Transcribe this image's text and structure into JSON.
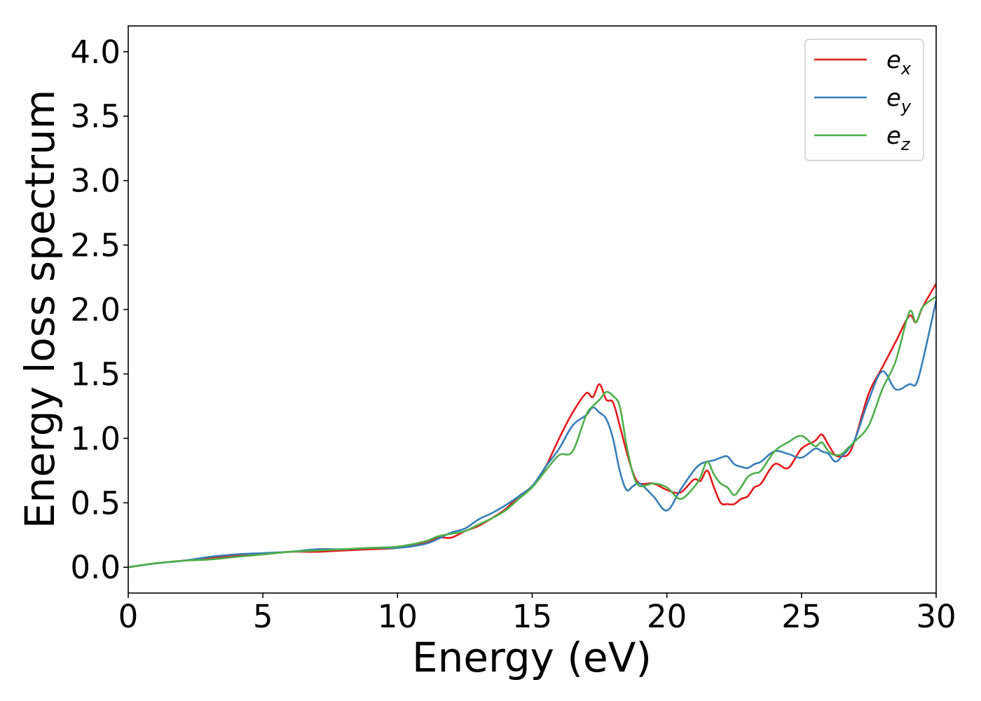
{
  "chart_data": {
    "type": "line",
    "title": "",
    "xlabel": "Energy (eV)",
    "ylabel": "Energy loss spectrum",
    "xlim": [
      0,
      30
    ],
    "ylim": [
      -0.2,
      4.2
    ],
    "xticks": [
      0,
      5,
      10,
      15,
      20,
      25,
      30
    ],
    "xtick_labels": [
      "0",
      "5",
      "10",
      "15",
      "20",
      "25",
      "30"
    ],
    "yticks": [
      0.0,
      0.5,
      1.0,
      1.5,
      2.0,
      2.5,
      3.0,
      3.5,
      4.0
    ],
    "ytick_labels": [
      "0.0",
      "0.5",
      "1.0",
      "1.5",
      "2.0",
      "2.5",
      "3.0",
      "3.5",
      "4.0"
    ],
    "grid": false,
    "legend_position": "top-right",
    "series": [
      {
        "name": "e_x",
        "label_base": "e",
        "label_sub": "x",
        "color": "#e41a1c",
        "x": [
          0,
          1,
          2,
          3,
          4,
          5,
          6,
          7,
          8,
          9,
          10,
          11,
          11.5,
          12,
          12.5,
          13,
          13.5,
          14,
          14.5,
          15,
          15.5,
          16,
          16.5,
          17,
          17.25,
          17.5,
          17.75,
          18,
          18.25,
          18.5,
          18.75,
          19,
          19.5,
          20,
          20.5,
          21,
          21.25,
          21.5,
          21.75,
          22,
          22.25,
          22.5,
          22.75,
          23,
          23.25,
          23.5,
          24,
          24.5,
          25,
          25.5,
          25.75,
          26,
          26.25,
          26.5,
          26.75,
          27,
          27.5,
          28,
          28.5,
          29,
          29.25,
          29.5,
          30
        ],
        "y": [
          0.0,
          0.03,
          0.05,
          0.07,
          0.09,
          0.1,
          0.12,
          0.12,
          0.13,
          0.14,
          0.15,
          0.19,
          0.23,
          0.23,
          0.28,
          0.32,
          0.38,
          0.45,
          0.55,
          0.63,
          0.78,
          1.0,
          1.2,
          1.35,
          1.32,
          1.42,
          1.3,
          1.28,
          1.1,
          0.9,
          0.73,
          0.65,
          0.65,
          0.6,
          0.58,
          0.68,
          0.67,
          0.75,
          0.62,
          0.5,
          0.49,
          0.49,
          0.53,
          0.55,
          0.62,
          0.65,
          0.8,
          0.77,
          0.92,
          0.98,
          1.03,
          0.95,
          0.87,
          0.86,
          0.88,
          1.0,
          1.35,
          1.55,
          1.75,
          1.95,
          1.9,
          2.02,
          2.2
        ]
      },
      {
        "name": "e_y",
        "label_base": "e",
        "label_sub": "y",
        "color": "#377eb8",
        "x": [
          0,
          1,
          2,
          3,
          4,
          5,
          6,
          7,
          8,
          9,
          10,
          11,
          11.5,
          12,
          12.5,
          13,
          13.5,
          14,
          14.5,
          15,
          15.5,
          16,
          16.5,
          17,
          17.25,
          17.5,
          17.75,
          18,
          18.25,
          18.5,
          18.75,
          19,
          19.5,
          20,
          20.5,
          21,
          21.25,
          21.5,
          21.75,
          22,
          22.25,
          22.5,
          22.75,
          23,
          23.25,
          23.5,
          24,
          24.5,
          25,
          25.5,
          25.75,
          26,
          26.25,
          26.5,
          26.75,
          27,
          27.5,
          28,
          28.5,
          29,
          29.25,
          29.5,
          30
        ],
        "y": [
          0.0,
          0.03,
          0.05,
          0.08,
          0.1,
          0.11,
          0.12,
          0.14,
          0.14,
          0.15,
          0.15,
          0.18,
          0.22,
          0.27,
          0.3,
          0.37,
          0.42,
          0.48,
          0.55,
          0.63,
          0.78,
          0.92,
          1.1,
          1.18,
          1.24,
          1.2,
          1.15,
          1.0,
          0.75,
          0.6,
          0.63,
          0.65,
          0.55,
          0.44,
          0.6,
          0.75,
          0.8,
          0.82,
          0.83,
          0.85,
          0.86,
          0.8,
          0.78,
          0.77,
          0.8,
          0.82,
          0.9,
          0.88,
          0.85,
          0.92,
          0.9,
          0.88,
          0.82,
          0.86,
          0.92,
          1.0,
          1.3,
          1.52,
          1.38,
          1.42,
          1.42,
          1.6,
          2.07
        ]
      },
      {
        "name": "e_z",
        "label_base": "e",
        "label_sub": "z",
        "color": "#4daf4a",
        "x": [
          0,
          1,
          2,
          3,
          4,
          5,
          6,
          7,
          8,
          9,
          10,
          11,
          11.5,
          12,
          12.5,
          13,
          13.5,
          14,
          14.5,
          15,
          15.5,
          16,
          16.5,
          17,
          17.25,
          17.5,
          17.75,
          18,
          18.25,
          18.5,
          18.75,
          19,
          19.5,
          20,
          20.5,
          21,
          21.25,
          21.5,
          21.75,
          22,
          22.25,
          22.5,
          22.75,
          23,
          23.25,
          23.5,
          24,
          24.5,
          25,
          25.5,
          25.75,
          26,
          26.25,
          26.5,
          26.75,
          27,
          27.5,
          28,
          28.5,
          29,
          29.25,
          29.5,
          30
        ],
        "y": [
          0.0,
          0.03,
          0.05,
          0.06,
          0.08,
          0.1,
          0.12,
          0.13,
          0.14,
          0.15,
          0.16,
          0.2,
          0.24,
          0.26,
          0.28,
          0.33,
          0.38,
          0.44,
          0.53,
          0.62,
          0.75,
          0.87,
          0.9,
          1.18,
          1.25,
          1.3,
          1.36,
          1.33,
          1.25,
          0.95,
          0.72,
          0.63,
          0.65,
          0.62,
          0.53,
          0.62,
          0.7,
          0.82,
          0.72,
          0.65,
          0.62,
          0.56,
          0.62,
          0.7,
          0.73,
          0.75,
          0.9,
          0.97,
          1.02,
          0.94,
          0.97,
          0.9,
          0.87,
          0.88,
          0.93,
          0.98,
          1.1,
          1.38,
          1.6,
          1.98,
          1.9,
          2.02,
          2.1
        ]
      }
    ]
  }
}
